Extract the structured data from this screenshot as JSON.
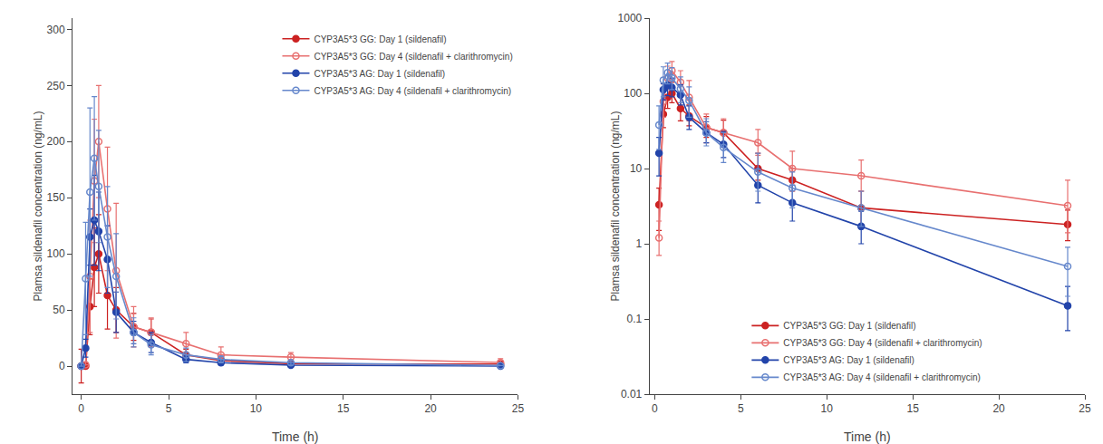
{
  "chart_data": [
    {
      "type": "line",
      "xlabel": "Time (h)",
      "ylabel": "Plamsa sildenafil concentration (ng/mL)",
      "x": [
        0,
        0.25,
        0.5,
        0.75,
        1,
        1.5,
        2,
        3,
        4,
        6,
        8,
        12,
        24
      ],
      "series": [
        {
          "name": "CYP3A5*3 GG: Day 1 (sildenafil)",
          "color": "#cc2222",
          "marker": "circle",
          "values": [
            0,
            0,
            53,
            88,
            100,
            63,
            50,
            35,
            30,
            10,
            5,
            2,
            1.8
          ],
          "errors": [
            15,
            0,
            25,
            35,
            35,
            30,
            20,
            12,
            12,
            5,
            3,
            2,
            1.0
          ]
        },
        {
          "name": "CYP3A5*3 GG: Day 4 (sildenafil + clarithromycin)",
          "color": "#e87070",
          "marker": "circle-open",
          "values": [
            0,
            1.2,
            80,
            165,
            200,
            140,
            85,
            35,
            30,
            20,
            10,
            8,
            3.2
          ],
          "errors": [
            0,
            0,
            50,
            55,
            50,
            55,
            60,
            18,
            13,
            10,
            7,
            4,
            3.5
          ]
        },
        {
          "name": "CYP3A5*3 AG: Day 1 (sildenafil)",
          "color": "#2244aa",
          "marker": "circle",
          "values": [
            0,
            16,
            115,
            130,
            120,
            95,
            48,
            30,
            21,
            6,
            3,
            0.8,
            0.1
          ],
          "errors": [
            0,
            8,
            25,
            40,
            35,
            30,
            18,
            10,
            9,
            3,
            2,
            0.5,
            0
          ]
        },
        {
          "name": "CYP3A5*3 AG: Day 4 (sildenafil + clarithromycin)",
          "color": "#6688cc",
          "marker": "circle-open",
          "values": [
            0,
            78,
            155,
            185,
            160,
            115,
            80,
            30,
            19,
            10,
            6,
            3,
            0.5
          ],
          "errors": [
            0,
            50,
            75,
            55,
            50,
            45,
            38,
            13,
            9,
            6,
            3,
            2,
            0
          ]
        }
      ],
      "xlim": [
        -0.5,
        25
      ],
      "xticks": [
        0,
        5,
        10,
        15,
        20,
        25
      ],
      "ylim": [
        -25,
        310
      ],
      "yticks": [
        0,
        50,
        100,
        150,
        200,
        250,
        300
      ],
      "grid": false,
      "legend": "upper right"
    },
    {
      "type": "line",
      "log": "y",
      "xlabel": "Time (h)",
      "ylabel": "Plamsa sildenafil concentration (ng/mL)",
      "x": [
        0.25,
        0.5,
        0.75,
        1,
        1.5,
        2,
        3,
        4,
        6,
        8,
        12,
        24
      ],
      "series": [
        {
          "name": "CYP3A5*3 GG: Day 1 (sildenafil)",
          "color": "#cc2222",
          "marker": "circle",
          "values": [
            3.3,
            53,
            88,
            100,
            63,
            50,
            35,
            30,
            10,
            7,
            3,
            1.8
          ],
          "errors_minus": [
            1.8,
            18,
            25,
            25,
            20,
            13,
            9,
            9,
            3,
            2,
            1.2,
            0.7
          ],
          "errors_plus": [
            2.2,
            28,
            40,
            40,
            33,
            20,
            14,
            14,
            6,
            3,
            2.0,
            1.0
          ]
        },
        {
          "name": "CYP3A5*3 GG: Day 4 (sildenafil + clarithromycin)",
          "color": "#e87070",
          "marker": "circle-open",
          "values": [
            1.2,
            78,
            160,
            200,
            140,
            88,
            35,
            30,
            22,
            10,
            8,
            3.2
          ],
          "errors_minus": [
            0.5,
            30,
            45,
            45,
            45,
            45,
            13,
            10,
            7,
            4,
            3,
            1.8
          ],
          "errors_plus": [
            0.8,
            55,
            70,
            65,
            60,
            60,
            18,
            16,
            11,
            7,
            5,
            3.8
          ]
        },
        {
          "name": "CYP3A5*3 AG: Day 1 (sildenafil)",
          "color": "#2244aa",
          "marker": "circle",
          "values": [
            16,
            112,
            128,
            120,
            95,
            48,
            30,
            21,
            6,
            3.5,
            1.7,
            0.15
          ],
          "errors_minus": [
            8,
            30,
            35,
            30,
            25,
            15,
            8,
            7,
            2.5,
            1.5,
            0.7,
            0.08
          ],
          "errors_plus": [
            10,
            22,
            45,
            40,
            35,
            20,
            12,
            10,
            4,
            2.5,
            1.0,
            0.12
          ]
        },
        {
          "name": "CYP3A5*3 AG: Day 4 (sildenafil + clarithromycin)",
          "color": "#6688cc",
          "marker": "circle-open",
          "values": [
            38,
            150,
            188,
            160,
            115,
            80,
            30,
            19,
            9,
            5.5,
            3,
            0.5
          ],
          "errors_minus": [
            20,
            60,
            55,
            48,
            40,
            32,
            10,
            7,
            4,
            2.5,
            1.3,
            0.3
          ],
          "errors_plus": [
            30,
            75,
            65,
            60,
            50,
            42,
            16,
            11,
            7,
            3.5,
            2,
            0.4
          ]
        }
      ],
      "xlim": [
        -0.3,
        25
      ],
      "xticks": [
        0,
        5,
        10,
        15,
        20,
        25
      ],
      "ylim": [
        0.01,
        1000
      ],
      "yticks": [
        0.01,
        0.1,
        1,
        10,
        100,
        1000
      ],
      "grid": false,
      "legend": "lower center"
    }
  ]
}
